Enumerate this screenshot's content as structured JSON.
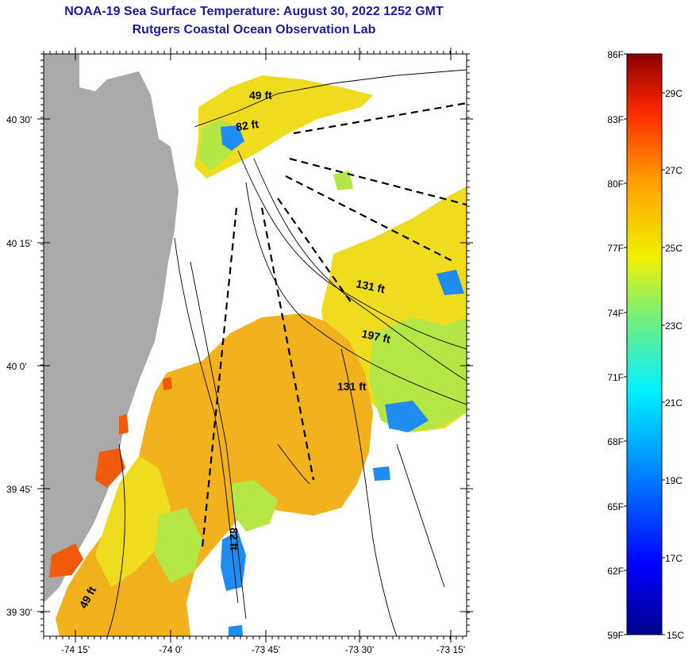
{
  "title_line1": "NOAA-19 Sea Surface Temperature:  August 30, 2022 1252 GMT",
  "title_line2": "Rutgers Coastal Ocean Observation Lab",
  "lat_labels": [
    "40 30'",
    "40 15'",
    "40 0'",
    "39 45'",
    "39 30'"
  ],
  "lon_labels": [
    "-74 15'",
    "-74 0'",
    "-73 45'",
    "-73 30'",
    "-73 15'"
  ],
  "depth_labels": [
    "49 ft",
    "82 ft",
    "131 ft",
    "197 ft",
    "131 ft",
    "82 ft",
    "49 ft"
  ],
  "colorbar": {
    "f_labels": [
      "86F",
      "83F",
      "80F",
      "77F",
      "74F",
      "71F",
      "68F",
      "65F",
      "62F",
      "59F"
    ],
    "c_labels": [
      "29C",
      "27C",
      "25C",
      "23C",
      "21C",
      "19C",
      "17C",
      "15C"
    ],
    "range_f": [
      59,
      86
    ],
    "range_c": [
      15,
      30
    ]
  },
  "colors": {
    "title": "#1a1aa6",
    "land": "#a9a9a9",
    "sst_warm": "#f2b21e",
    "sst_mid": "#f0dc1e",
    "sst_cool": "#b4e646",
    "sst_cold": "#1e8cf0"
  }
}
